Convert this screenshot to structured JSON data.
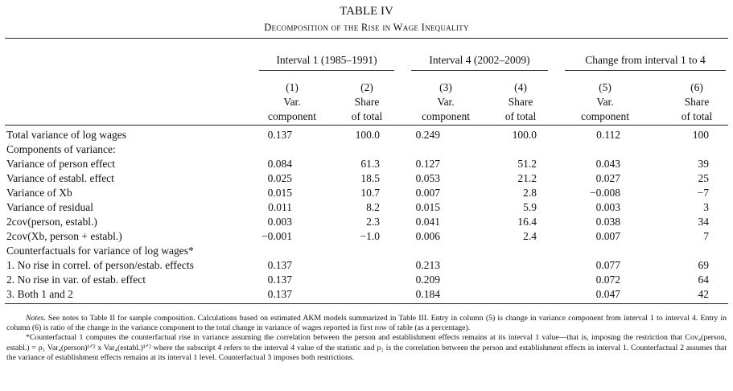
{
  "table_label": "TABLE IV",
  "table_title": "Decomposition of the Rise in Wage Inequality",
  "groups": [
    "Interval 1 (1985–1991)",
    "Interval 4 (2002–2009)",
    "Change from interval 1 to 4"
  ],
  "columns": [
    {
      "num": "(1)",
      "line1": "Var.",
      "line2": "component"
    },
    {
      "num": "(2)",
      "line1": "Share",
      "line2": "of total"
    },
    {
      "num": "(3)",
      "line1": "Var.",
      "line2": "component"
    },
    {
      "num": "(4)",
      "line1": "Share",
      "line2": "of total"
    },
    {
      "num": "(5)",
      "line1": "Var.",
      "line2": "component"
    },
    {
      "num": "(6)",
      "line1": "Share",
      "line2": "of total"
    }
  ],
  "rows": [
    {
      "label": "Total variance of log wages",
      "values": [
        "0.137",
        "100.0",
        "0.249",
        "100.0",
        "0.112",
        "100"
      ]
    },
    {
      "label": "Components of variance:",
      "values": [
        "",
        "",
        "",
        "",
        "",
        ""
      ]
    },
    {
      "label": "Variance of person effect",
      "values": [
        "0.084",
        "61.3",
        "0.127",
        "51.2",
        "0.043",
        "39"
      ]
    },
    {
      "label": "Variance of establ. effect",
      "values": [
        "0.025",
        "18.5",
        "0.053",
        "21.2",
        "0.027",
        "25"
      ]
    },
    {
      "label": "Variance of Xb",
      "values": [
        "0.015",
        "10.7",
        "0.007",
        "2.8",
        "−0.008",
        "−7"
      ]
    },
    {
      "label": "Variance of residual",
      "values": [
        "0.011",
        "8.2",
        "0.015",
        "5.9",
        "0.003",
        "3"
      ]
    },
    {
      "label": "2cov(person, establ.)",
      "values": [
        "0.003",
        "2.3",
        "0.041",
        "16.4",
        "0.038",
        "34"
      ]
    },
    {
      "label": "2cov(Xb, person + establ.)",
      "values": [
        "−0.001",
        "−1.0",
        "0.006",
        "2.4",
        "0.007",
        "7"
      ]
    },
    {
      "label": "Counterfactuals for variance of log wages*",
      "values": [
        "",
        "",
        "",
        "",
        "",
        ""
      ]
    },
    {
      "label": "1. No rise in correl. of person/estab. effects",
      "values": [
        "0.137",
        "",
        "0.213",
        "",
        "0.077",
        "69"
      ]
    },
    {
      "label": "2. No rise in var. of estab. effect",
      "values": [
        "0.137",
        "",
        "0.209",
        "",
        "0.072",
        "64"
      ]
    },
    {
      "label": "3. Both 1 and 2",
      "values": [
        "0.137",
        "",
        "0.184",
        "",
        "0.047",
        "42"
      ]
    }
  ],
  "notes": {
    "notes_label": "Notes.",
    "notes_text": " See notes to Table II for sample composition. Calculations based on estimated AKM models summarized in Table III. Entry in column (5) is change in variance component from interval 1 to interval 4. Entry in column (6) is ratio of the change in the variance component to the total change in variance of wages reported in first row of table (as a percentage).",
    "counterfactual_text": "*Counterfactual 1 computes the counterfactual rise in variance assuming the correlation between the person and establishment effects remains at its interval 1 value—that is, imposing the restriction that Cov₄(person, establ.) = ρ₁ Var₄(person)¹ᐟ² x Var₄(establ.)¹ᐟ² where the subscript 4 refers to the interval 4 value of the statistic and ρ₁ is the correlation between the person and establishment effects in interval 1. Counterfactual 2 assumes that the variance of establishment effects remains at its interval 1 level. Counterfactual 3 imposes both restrictions."
  }
}
